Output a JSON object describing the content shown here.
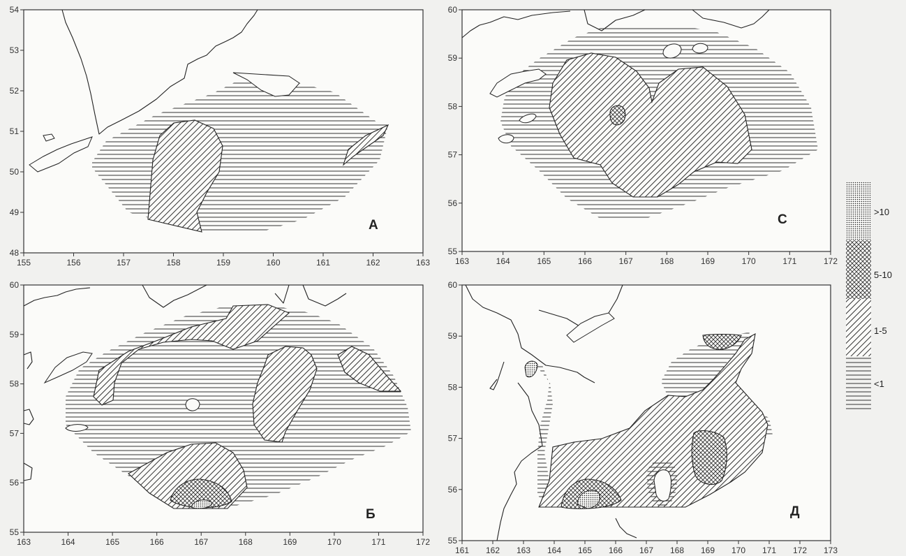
{
  "panels": {
    "a": {
      "letter": "А",
      "x_ticks": [
        "155",
        "156",
        "157",
        "158",
        "159",
        "160",
        "161",
        "162",
        "163"
      ],
      "y_ticks": [
        "54",
        "53",
        "52",
        "51",
        "50",
        "49",
        "48"
      ]
    },
    "c": {
      "letter": "С",
      "x_ticks": [
        "163",
        "164",
        "165",
        "166",
        "167",
        "168",
        "169",
        "170",
        "171",
        "172"
      ],
      "y_ticks": [
        "60",
        "59",
        "58",
        "57",
        "56",
        "55"
      ]
    },
    "b": {
      "letter": "Б",
      "x_ticks": [
        "163",
        "164",
        "165",
        "166",
        "167",
        "168",
        "169",
        "170",
        "171",
        "172"
      ],
      "y_ticks": [
        "60",
        "59",
        "58",
        "57",
        "56",
        "55"
      ]
    },
    "d": {
      "letter": "Д",
      "x_ticks": [
        "161",
        "162",
        "163",
        "164",
        "165",
        "166",
        "167",
        "168",
        "169",
        "170",
        "171",
        "172",
        "173"
      ],
      "y_ticks": [
        "60",
        "59",
        "58",
        "57",
        "56",
        "55"
      ]
    }
  },
  "legend": {
    "items": [
      {
        "label": ">10",
        "pattern": "dots"
      },
      {
        "label": "5-10",
        "pattern": "cross-hatch"
      },
      {
        "label": "1-5",
        "pattern": "diagonal-lines"
      },
      {
        "label": "<1",
        "pattern": "horizontal-lines"
      }
    ]
  }
}
